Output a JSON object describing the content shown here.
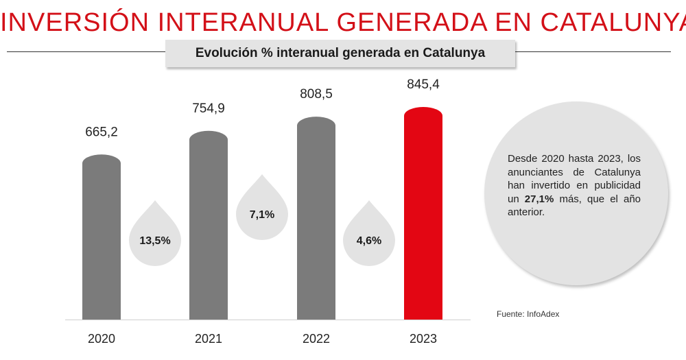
{
  "title": "INVERSIÓN INTERANUAL GENERADA EN CATALUNYA",
  "subtitle": "Evolución % interanual generada en Catalunya",
  "chart_data": {
    "type": "bar",
    "categories": [
      "2020",
      "2021",
      "2022",
      "2023"
    ],
    "values": [
      665.2,
      754.9,
      808.5,
      845.4
    ],
    "value_labels": [
      "665,2",
      "754,9",
      "808,5",
      "845,4"
    ],
    "growth_labels": [
      "13,5%",
      "7,1%",
      "4,6%"
    ],
    "colors": [
      "#7b7b7b",
      "#7b7b7b",
      "#7b7b7b",
      "#e30613"
    ],
    "growth_drop_color": "#e3e3e3",
    "ylim": [
      0,
      845.4
    ],
    "xlabel": "",
    "ylabel": "",
    "grid": false,
    "legend": false
  },
  "info": {
    "text_before": "Desde 2020 hasta 2023, los anunciantes de Catalunya han invertido en publicidad un ",
    "highlight": "27,1%",
    "text_after": " más, que el año anterior."
  },
  "source": "Fuente: InfoAdex",
  "colors": {
    "title": "#d31018",
    "highlight_bar": "#e30613",
    "bar": "#7b7b7b",
    "panel": "#e3e3e3"
  }
}
